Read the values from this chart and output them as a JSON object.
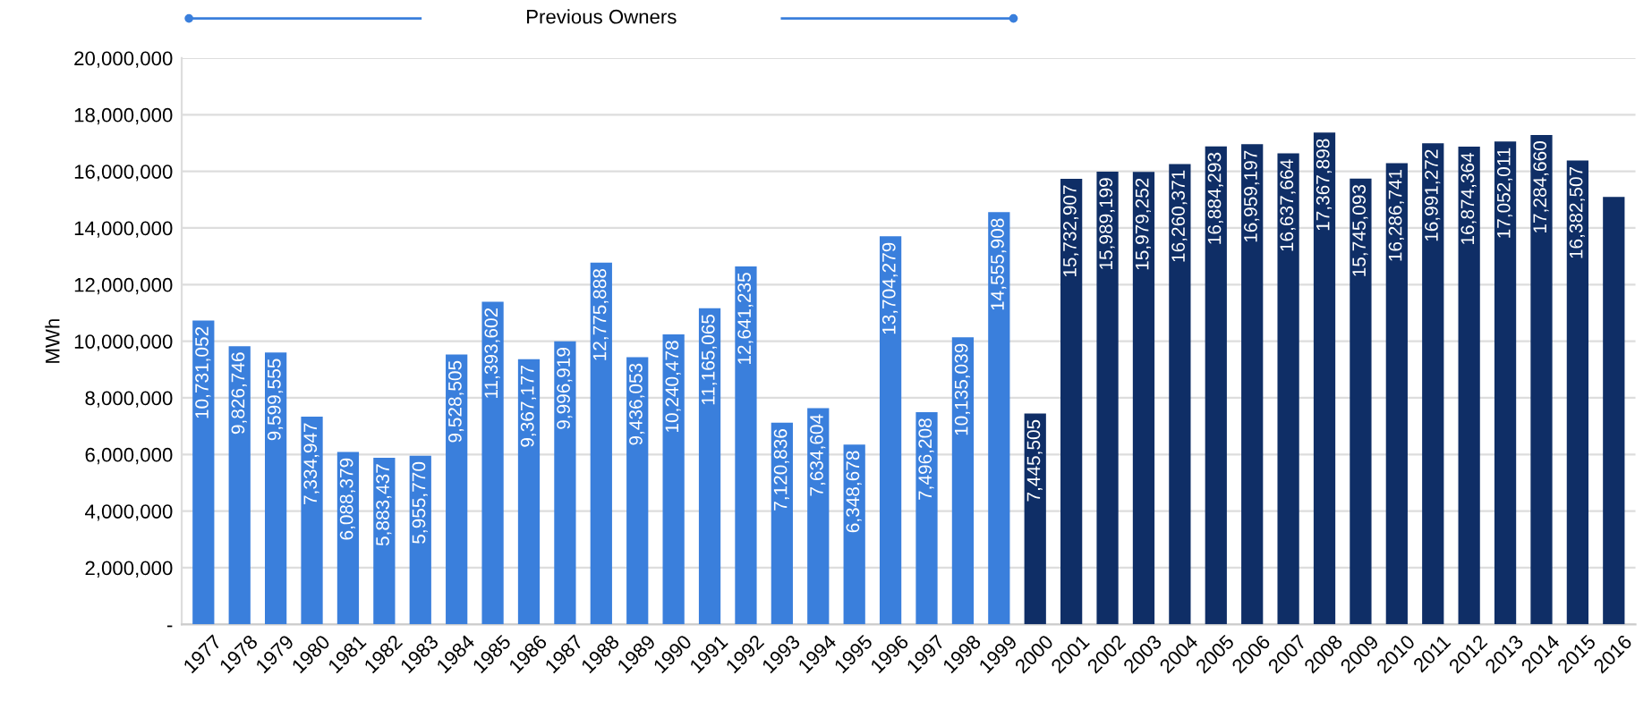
{
  "chart_data": {
    "type": "bar",
    "ylabel": "MWh",
    "categories": [
      "1977",
      "1978",
      "1979",
      "1980",
      "1981",
      "1982",
      "1983",
      "1984",
      "1985",
      "1986",
      "1987",
      "1988",
      "1989",
      "1990",
      "1991",
      "1992",
      "1993",
      "1994",
      "1995",
      "1996",
      "1997",
      "1998",
      "1999",
      "2000",
      "2001",
      "2002",
      "2003",
      "2004",
      "2005",
      "2006",
      "2007",
      "2008",
      "2009",
      "2010",
      "2011",
      "2012",
      "2013",
      "2014",
      "2015",
      "2016"
    ],
    "values": [
      10731052,
      9826746,
      9599555,
      7334947,
      6088379,
      5883437,
      5955770,
      9528505,
      11393602,
      9367177,
      9996919,
      12775888,
      9436053,
      10240478,
      11165065,
      12641235,
      7120836,
      7634604,
      6348678,
      13704279,
      7496208,
      10135039,
      14555908,
      7445505,
      15732907,
      15989199,
      15979252,
      16260371,
      16884293,
      16959197,
      16637664,
      17367898,
      15745093,
      16286741,
      16991272,
      16874364,
      17052011,
      17284660,
      16382507,
      15100000
    ],
    "value_labels": [
      "10,731,052",
      "9,826,746",
      "9,599,555",
      "7,334,947",
      "6,088,379",
      "5,883,437",
      "5,955,770",
      "9,528,505",
      "11,393,602",
      "9,367,177",
      "9,996,919",
      "12,775,888",
      "9,436,053",
      "10,240,478",
      "11,165,065",
      "12,641,235",
      "7,120,836",
      "7,634,604",
      "6,348,678",
      "13,704,279",
      "7,496,208",
      "10,135,039",
      "14,555,908",
      "7,445,505",
      "15,732,907",
      "15,989,199",
      "15,979,252",
      "16,260,371",
      "16,884,293",
      "16,959,197",
      "16,637,664",
      "17,367,898",
      "15,745,093",
      "16,286,741",
      "16,991,272",
      "16,874,364",
      "17,052,011",
      "17,284,660",
      "16,382,507",
      null
    ],
    "colors": [
      "#3a7fdc",
      "#3a7fdc",
      "#3a7fdc",
      "#3a7fdc",
      "#3a7fdc",
      "#3a7fdc",
      "#3a7fdc",
      "#3a7fdc",
      "#3a7fdc",
      "#3a7fdc",
      "#3a7fdc",
      "#3a7fdc",
      "#3a7fdc",
      "#3a7fdc",
      "#3a7fdc",
      "#3a7fdc",
      "#3a7fdc",
      "#3a7fdc",
      "#3a7fdc",
      "#3a7fdc",
      "#3a7fdc",
      "#3a7fdc",
      "#3a7fdc",
      "#0f2e66",
      "#0f2e66",
      "#0f2e66",
      "#0f2e66",
      "#0f2e66",
      "#0f2e66",
      "#0f2e66",
      "#0f2e66",
      "#0f2e66",
      "#0f2e66",
      "#0f2e66",
      "#0f2e66",
      "#0f2e66",
      "#0f2e66",
      "#0f2e66",
      "#0f2e66",
      "#0f2e66"
    ],
    "ylim": [
      0,
      20000000
    ],
    "yticks": [
      {
        "value": 0,
        "label": "-"
      },
      {
        "value": 2000000,
        "label": "2,000,000"
      },
      {
        "value": 4000000,
        "label": "4,000,000"
      },
      {
        "value": 6000000,
        "label": "6,000,000"
      },
      {
        "value": 8000000,
        "label": "8,000,000"
      },
      {
        "value": 10000000,
        "label": "10,000,000"
      },
      {
        "value": 12000000,
        "label": "12,000,000"
      },
      {
        "value": 14000000,
        "label": "14,000,000"
      },
      {
        "value": 16000000,
        "label": "16,000,000"
      },
      {
        "value": 18000000,
        "label": "18,000,000"
      },
      {
        "value": 20000000,
        "label": "20,000,000"
      }
    ],
    "grid": "y",
    "annotations": [
      "Previous Owners"
    ]
  }
}
